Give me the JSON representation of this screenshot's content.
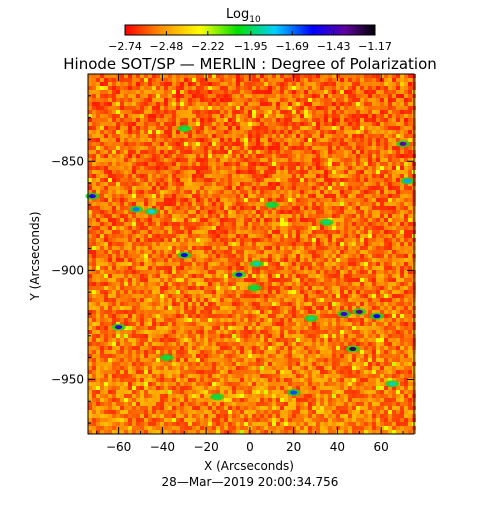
{
  "chart_data": {
    "type": "heatmap",
    "title": "Hinode SOT/SP — MERLIN : Degree of Polarization",
    "xlabel": "X (Arcseconds)",
    "ylabel": "Y (Arcseconds)",
    "timestamp": "28—Mar—2019 20:00:34.756",
    "xlim": [
      -74,
      75
    ],
    "ylim": [
      -975,
      -810
    ],
    "x_ticks": [
      -60,
      -40,
      -20,
      0,
      20,
      40,
      60
    ],
    "x_tick_labels": [
      "−60",
      "−40",
      "−20",
      "0",
      "20",
      "40",
      "60"
    ],
    "y_ticks": [
      -850,
      -900,
      -950
    ],
    "y_tick_labels": [
      "−850",
      "−900",
      "−950"
    ],
    "colorbar": {
      "label_main": "Log",
      "label_sub": "10",
      "min": -2.74,
      "max": -1.17,
      "ticks": [
        -2.74,
        -2.48,
        -2.22,
        -1.95,
        -1.69,
        -1.43,
        -1.17
      ],
      "tick_labels": [
        "−2.74",
        "−2.48",
        "−2.22",
        "−1.95",
        "−1.69",
        "−1.43",
        "−1.17"
      ],
      "colormap": [
        "#ff0000",
        "#ff8c00",
        "#ffff00",
        "#00e000",
        "#00d0ff",
        "#0000ff",
        "#6000a0",
        "#000000"
      ]
    },
    "features": [
      {
        "x": -72,
        "y": -866,
        "level": -1.55
      },
      {
        "x": -52,
        "y": -872,
        "level": -1.75
      },
      {
        "x": -45,
        "y": -873,
        "level": -1.85
      },
      {
        "x": -30,
        "y": -893,
        "level": -1.6
      },
      {
        "x": -5,
        "y": -902,
        "level": -1.55
      },
      {
        "x": 3,
        "y": -897,
        "level": -1.9
      },
      {
        "x": 2,
        "y": -908,
        "level": -2.0
      },
      {
        "x": -60,
        "y": -926,
        "level": -1.5
      },
      {
        "x": 28,
        "y": -922,
        "level": -1.95
      },
      {
        "x": 43,
        "y": -920,
        "level": -1.5
      },
      {
        "x": 50,
        "y": -919,
        "level": -1.35
      },
      {
        "x": 58,
        "y": -921,
        "level": -1.6
      },
      {
        "x": 47,
        "y": -936,
        "level": -1.3
      },
      {
        "x": 70,
        "y": -842,
        "level": -1.4
      },
      {
        "x": 72,
        "y": -859,
        "level": -1.8
      },
      {
        "x": 20,
        "y": -956,
        "level": -1.7
      },
      {
        "x": 65,
        "y": -952,
        "level": -1.9
      },
      {
        "x": -30,
        "y": -835,
        "level": -2.0
      },
      {
        "x": -15,
        "y": -958,
        "level": -2.0
      },
      {
        "x": 35,
        "y": -878,
        "level": -1.95
      },
      {
        "x": -38,
        "y": -940,
        "level": -2.0
      },
      {
        "x": 10,
        "y": -870,
        "level": -2.0
      }
    ]
  }
}
